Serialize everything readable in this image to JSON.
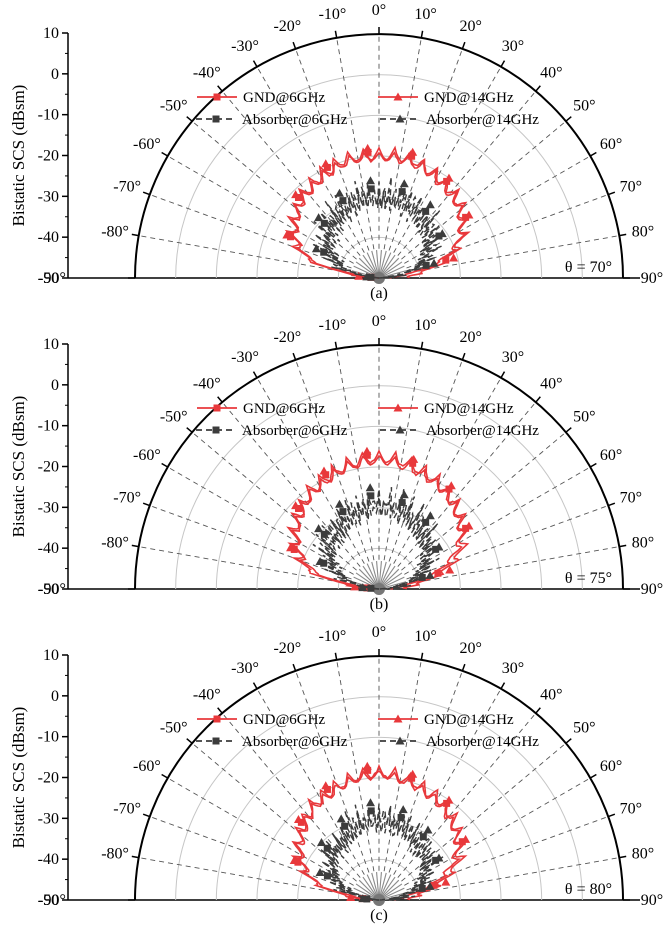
{
  "chart_data": [
    {
      "type": "polar-line",
      "panel_label": "(a)",
      "incidence_label": "θ = 70°",
      "ylabel": "Bistatic SCS (dBsm)",
      "r_ticks": [
        "10",
        "0",
        "-10",
        "-20",
        "-30",
        "-40",
        "-50"
      ],
      "r_range": [
        -50,
        10
      ],
      "angle_range": [
        -90,
        90
      ],
      "angle_ticks": [
        "-90°",
        "-80°",
        "-70°",
        "-60°",
        "-50°",
        "-40°",
        "-30°",
        "-20°",
        "-10°",
        "0°",
        "10°",
        "20°",
        "30°",
        "40°",
        "50°",
        "60°",
        "70°",
        "80°",
        "90°"
      ],
      "legend": [
        "GND@6GHz",
        "GND@14GHz",
        "Absorber@6GHz",
        "Absorber@14GHz"
      ],
      "series": [
        {
          "name": "GND@6GHz",
          "angles": [
            -85,
            -75,
            -65,
            -55,
            -45,
            -35,
            -25,
            -15,
            -5,
            5,
            15,
            25,
            35,
            45,
            55,
            65,
            75,
            85
          ],
          "values": [
            -48,
            -31,
            -26,
            -24,
            -22,
            -21,
            -20,
            -19,
            -19,
            -19,
            -19,
            -20,
            -21,
            -22,
            -24,
            -27,
            -33,
            -45
          ]
        },
        {
          "name": "GND@14GHz",
          "angles": [
            -85,
            -75,
            -65,
            -55,
            -45,
            -35,
            -25,
            -15,
            -5,
            5,
            15,
            25,
            35,
            45,
            55,
            65,
            75,
            85
          ],
          "values": [
            -45,
            -30,
            -25,
            -23,
            -21,
            -20,
            -19,
            -18,
            -18,
            -18,
            -18,
            -19,
            -20,
            -21,
            -23,
            -26,
            -31,
            -40
          ]
        },
        {
          "name": "Absorber@6GHz",
          "angles": [
            -85,
            -75,
            -65,
            -55,
            -45,
            -35,
            -25,
            -15,
            -5,
            5,
            15,
            25,
            35,
            45,
            55,
            65,
            75,
            85
          ],
          "values": [
            -48,
            -38,
            -35,
            -32,
            -31,
            -30,
            -29,
            -28,
            -28,
            -28,
            -28,
            -29,
            -30,
            -31,
            -32,
            -34,
            -38,
            -46
          ]
        },
        {
          "name": "Absorber@14GHz",
          "angles": [
            -85,
            -75,
            -65,
            -55,
            -45,
            -35,
            -25,
            -15,
            -5,
            5,
            15,
            25,
            35,
            45,
            55,
            65,
            75,
            85
          ],
          "values": [
            -47,
            -37,
            -33,
            -31,
            -29,
            -28,
            -27,
            -26,
            -26,
            -26,
            -26,
            -27,
            -28,
            -29,
            -31,
            -33,
            -36,
            -44
          ]
        }
      ]
    },
    {
      "type": "polar-line",
      "panel_label": "(b)",
      "incidence_label": "θ = 75°",
      "ylabel": "Bistatic SCS (dBsm)",
      "r_ticks": [
        "10",
        "0",
        "-10",
        "-20",
        "-30",
        "-40",
        "-50"
      ],
      "r_range": [
        -50,
        10
      ],
      "angle_range": [
        -90,
        90
      ],
      "angle_ticks": [
        "-90°",
        "-80°",
        "-70°",
        "-60°",
        "-50°",
        "-40°",
        "-30°",
        "-20°",
        "-10°",
        "0°",
        "10°",
        "20°",
        "30°",
        "40°",
        "50°",
        "60°",
        "70°",
        "80°",
        "90°"
      ],
      "legend": [
        "GND@6GHz",
        "GND@14GHz",
        "Absorber@6GHz",
        "Absorber@14GHz"
      ],
      "series": [
        {
          "name": "GND@6GHz",
          "angles": [
            -85,
            -75,
            -65,
            -55,
            -45,
            -35,
            -25,
            -15,
            -5,
            5,
            15,
            25,
            35,
            45,
            55,
            65,
            75,
            85
          ],
          "values": [
            -47,
            -32,
            -27,
            -24,
            -22,
            -20,
            -19,
            -18,
            -17,
            -17,
            -18,
            -19,
            -20,
            -22,
            -24,
            -28,
            -35,
            -45
          ]
        },
        {
          "name": "GND@14GHz",
          "angles": [
            -85,
            -75,
            -65,
            -55,
            -45,
            -35,
            -25,
            -15,
            -5,
            5,
            15,
            25,
            35,
            45,
            55,
            65,
            75,
            85
          ],
          "values": [
            -44,
            -30,
            -26,
            -23,
            -21,
            -19,
            -18,
            -17,
            -16,
            -16,
            -17,
            -18,
            -19,
            -21,
            -23,
            -26,
            -32,
            -41
          ]
        },
        {
          "name": "Absorber@6GHz",
          "angles": [
            -85,
            -75,
            -65,
            -55,
            -45,
            -35,
            -25,
            -15,
            -5,
            5,
            15,
            25,
            35,
            45,
            55,
            65,
            75,
            85
          ],
          "values": [
            -48,
            -39,
            -35,
            -33,
            -31,
            -30,
            -29,
            -28,
            -27,
            -27,
            -28,
            -29,
            -30,
            -31,
            -33,
            -35,
            -39,
            -46
          ]
        },
        {
          "name": "Absorber@14GHz",
          "angles": [
            -85,
            -75,
            -65,
            -55,
            -45,
            -35,
            -25,
            -15,
            -5,
            5,
            15,
            25,
            35,
            45,
            55,
            65,
            75,
            85
          ],
          "values": [
            -46,
            -38,
            -34,
            -31,
            -29,
            -28,
            -27,
            -26,
            -25,
            -25,
            -26,
            -27,
            -28,
            -30,
            -32,
            -34,
            -37,
            -43
          ]
        }
      ]
    },
    {
      "type": "polar-line",
      "panel_label": "(c)",
      "incidence_label": "θ = 80°",
      "ylabel": "Bistatic SCS (dBsm)",
      "r_ticks": [
        "10",
        "0",
        "-10",
        "-20",
        "-30",
        "-40",
        "-50"
      ],
      "r_range": [
        -50,
        10
      ],
      "angle_range": [
        -90,
        90
      ],
      "angle_ticks": [
        "-90°",
        "-80°",
        "-70°",
        "-60°",
        "-50°",
        "-40°",
        "-30°",
        "-20°",
        "-10°",
        "0°",
        "10°",
        "20°",
        "30°",
        "40°",
        "50°",
        "60°",
        "70°",
        "80°",
        "90°"
      ],
      "legend": [
        "GND@6GHz",
        "GND@14GHz",
        "Absorber@6GHz",
        "Absorber@14GHz"
      ],
      "series": [
        {
          "name": "GND@6GHz",
          "angles": [
            -85,
            -75,
            -65,
            -55,
            -45,
            -35,
            -25,
            -15,
            -5,
            5,
            15,
            25,
            35,
            45,
            55,
            65,
            75,
            85
          ],
          "values": [
            -46,
            -33,
            -28,
            -25,
            -23,
            -21,
            -20,
            -19,
            -18,
            -18,
            -19,
            -20,
            -21,
            -23,
            -25,
            -29,
            -36,
            -44
          ]
        },
        {
          "name": "GND@14GHz",
          "angles": [
            -85,
            -75,
            -65,
            -55,
            -45,
            -35,
            -25,
            -15,
            -5,
            5,
            15,
            25,
            35,
            45,
            55,
            65,
            75,
            85
          ],
          "values": [
            -43,
            -32,
            -27,
            -24,
            -22,
            -20,
            -19,
            -18,
            -17,
            -17,
            -18,
            -19,
            -20,
            -22,
            -24,
            -27,
            -33,
            -40
          ]
        },
        {
          "name": "Absorber@6GHz",
          "angles": [
            -85,
            -75,
            -65,
            -55,
            -45,
            -35,
            -25,
            -15,
            -5,
            5,
            15,
            25,
            35,
            45,
            55,
            65,
            75,
            85
          ],
          "values": [
            -47,
            -40,
            -36,
            -33,
            -32,
            -31,
            -30,
            -29,
            -28,
            -28,
            -29,
            -30,
            -31,
            -32,
            -33,
            -35,
            -39,
            -45
          ]
        },
        {
          "name": "Absorber@14GHz",
          "angles": [
            -85,
            -75,
            -65,
            -55,
            -45,
            -35,
            -25,
            -15,
            -5,
            5,
            15,
            25,
            35,
            45,
            55,
            65,
            75,
            85
          ],
          "values": [
            -46,
            -38,
            -34,
            -32,
            -30,
            -29,
            -28,
            -27,
            -26,
            -26,
            -27,
            -28,
            -29,
            -30,
            -32,
            -34,
            -37,
            -42
          ]
        }
      ]
    }
  ],
  "colors": {
    "gnd": "#e8383b",
    "absorber": "#3c3c3c",
    "grid": "#c6c6c6"
  }
}
